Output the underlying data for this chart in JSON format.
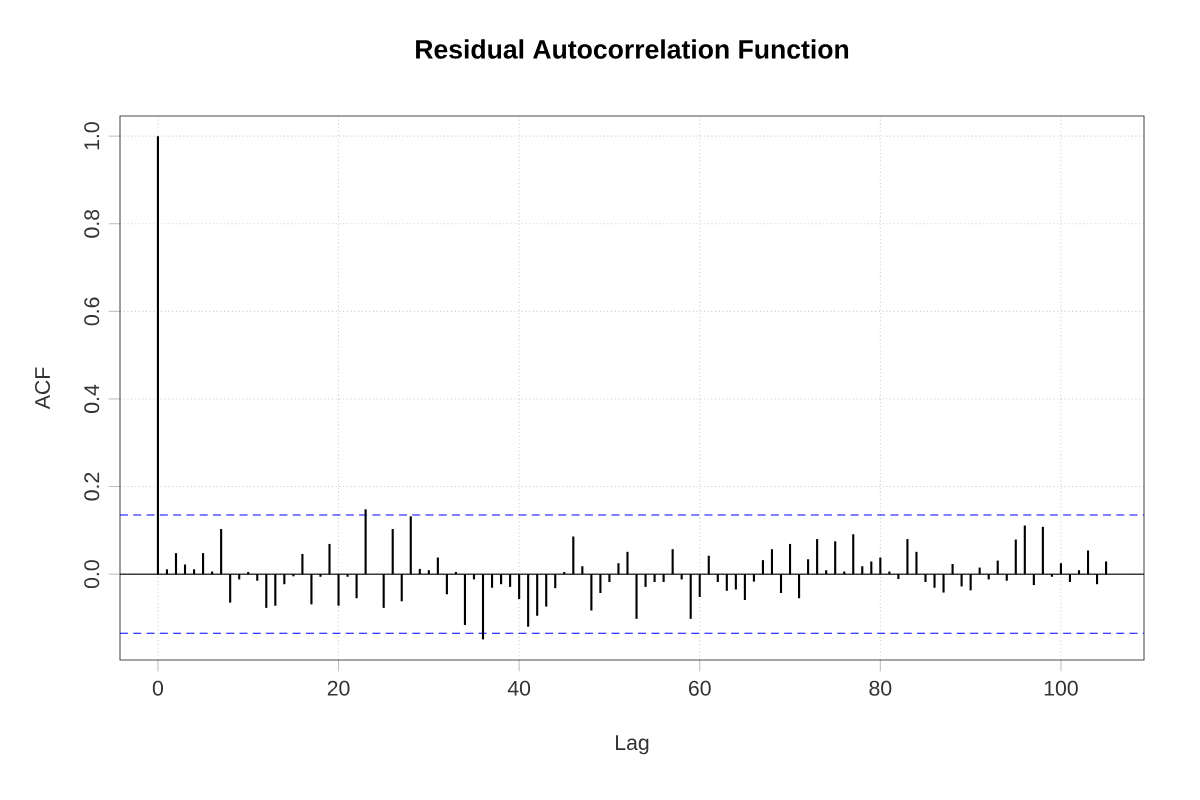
{
  "chart_data": {
    "type": "bar",
    "title": "Residual Autocorrelation Function",
    "xlabel": "Lag",
    "ylabel": "ACF",
    "x": [
      0,
      1,
      2,
      3,
      4,
      5,
      6,
      7,
      8,
      9,
      10,
      11,
      12,
      13,
      14,
      15,
      16,
      17,
      18,
      19,
      20,
      21,
      22,
      23,
      24,
      25,
      26,
      27,
      28,
      29,
      30,
      31,
      32,
      33,
      34,
      35,
      36,
      37,
      38,
      39,
      40,
      41,
      42,
      43,
      44,
      45,
      46,
      47,
      48,
      49,
      50,
      51,
      52,
      53,
      54,
      55,
      56,
      57,
      58,
      59,
      60,
      61,
      62,
      63,
      64,
      65,
      66,
      67,
      68,
      69,
      70,
      71,
      72,
      73,
      74,
      75,
      76,
      77,
      78,
      79,
      80,
      81,
      82,
      83,
      84,
      85,
      86,
      87,
      88,
      89,
      90,
      91,
      92,
      93,
      94,
      95,
      96,
      97,
      98,
      99,
      100,
      101,
      102,
      103,
      104,
      105
    ],
    "values": [
      1.0,
      0.011,
      0.048,
      0.022,
      0.011,
      0.048,
      0.006,
      0.103,
      -0.065,
      -0.012,
      0.005,
      -0.015,
      -0.077,
      -0.072,
      -0.023,
      -0.005,
      0.046,
      -0.069,
      -0.006,
      0.069,
      -0.072,
      -0.006,
      -0.055,
      0.148,
      null,
      -0.077,
      0.103,
      -0.062,
      0.132,
      0.012,
      0.009,
      0.038,
      -0.046,
      0.005,
      -0.116,
      -0.012,
      -0.149,
      -0.031,
      -0.023,
      -0.029,
      -0.057,
      -0.12,
      -0.095,
      -0.074,
      -0.032,
      0.005,
      0.086,
      0.018,
      -0.083,
      -0.043,
      -0.018,
      0.025,
      0.051,
      -0.102,
      -0.029,
      -0.018,
      -0.018,
      0.057,
      -0.012,
      -0.102,
      -0.052,
      0.042,
      -0.018,
      -0.038,
      -0.035,
      -0.059,
      -0.017,
      0.032,
      0.057,
      -0.043,
      0.069,
      -0.055,
      0.034,
      0.08,
      0.009,
      0.075,
      0.006,
      0.091,
      0.018,
      0.029,
      0.038,
      0.006,
      -0.011,
      0.08,
      0.051,
      -0.018,
      -0.031,
      -0.042,
      0.023,
      -0.028,
      -0.037,
      0.015,
      -0.012,
      0.031,
      -0.015,
      0.079,
      0.111,
      -0.025,
      0.108,
      -0.006,
      0.025,
      -0.018,
      0.009,
      0.054,
      -0.023,
      0.029
    ],
    "color": "#000000",
    "xlim": [
      -4.2,
      109.2
    ],
    "ylim": [
      -0.196,
      1.046
    ],
    "xticks": [
      0,
      20,
      40,
      60,
      80,
      100
    ],
    "yticks": [
      {
        "value": 0,
        "label": "0.0"
      },
      {
        "value": 0.2,
        "label": "0.2"
      },
      {
        "value": 0.4,
        "label": "0.4"
      },
      {
        "value": 0.6,
        "label": "0.6"
      },
      {
        "value": 0.8,
        "label": "0.8"
      },
      {
        "value": 1.0,
        "label": "1.0"
      }
    ],
    "grid": true,
    "ref_lines": [
      {
        "axis": "y",
        "value": 0,
        "color": "#000000",
        "line_style": "solid"
      },
      {
        "axis": "y",
        "value": 0.135,
        "color": "#0000ff",
        "line_style": "dashed"
      },
      {
        "axis": "y",
        "value": -0.135,
        "color": "#0000ff",
        "line_style": "dashed"
      }
    ]
  }
}
